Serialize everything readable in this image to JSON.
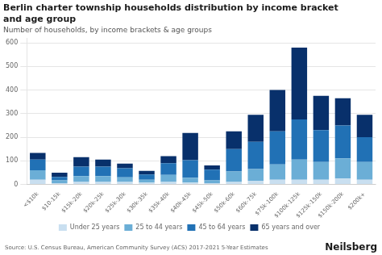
{
  "chart_data": {
    "type": "bar",
    "title": "Berlin charter township households distribution by income bracket\nand age group",
    "subtitle": "Number of households, by income brackets & age groups",
    "annotations": [
      "Source: U.S. Census Bureau, American Community Survey (ACS) 2017-2021 5-Year Estimates",
      "Neilsberg"
    ],
    "categories": [
      "<$10k",
      "$10-15k",
      "$15k-20k",
      "$20k-25k",
      "$25k-30k",
      "$30k-35k",
      "$35k-40k",
      "$40k-45k",
      "$45k-50k",
      "$50k-60k",
      "$60k-75k",
      "$75k-100k",
      "$100k-125k",
      "$125k-150k",
      "$150k-200k",
      "$200k+"
    ],
    "series": [
      {
        "name": "Under 25 years",
        "color": "#c9dff0",
        "values": [
          20,
          5,
          10,
          10,
          10,
          8,
          10,
          8,
          5,
          10,
          15,
          20,
          20,
          20,
          25,
          20
        ]
      },
      {
        "name": "25 to 44 years",
        "color": "#6baed6",
        "values": [
          40,
          12,
          25,
          25,
          20,
          12,
          30,
          20,
          12,
          45,
          50,
          65,
          85,
          75,
          85,
          75
        ]
      },
      {
        "name": "45 to 64 years",
        "color": "#2171b5",
        "values": [
          45,
          15,
          40,
          40,
          38,
          22,
          50,
          75,
          45,
          95,
          115,
          140,
          170,
          135,
          140,
          105
        ]
      },
      {
        "name": "65 years and over",
        "color": "#08306b",
        "values": [
          28,
          18,
          40,
          30,
          20,
          15,
          30,
          115,
          18,
          75,
          115,
          175,
          305,
          145,
          115,
          95
        ]
      }
    ],
    "stacked": true,
    "ylim": [
      0,
      620
    ],
    "yticks": [
      0,
      100,
      200,
      300,
      400,
      500,
      600
    ],
    "grid": true,
    "legend": "bottom"
  }
}
